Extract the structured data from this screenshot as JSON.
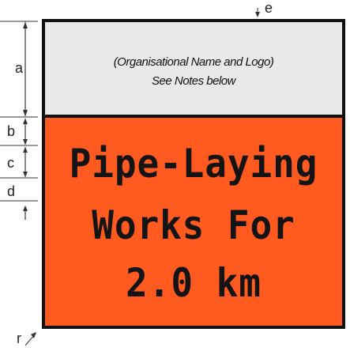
{
  "logo_panel": {
    "line1": "(Organisational Name and Logo)",
    "line2": "See Notes below"
  },
  "sign_lines": [
    "Pipe-Laying",
    "Works For",
    "2.0 km"
  ],
  "dimension_labels": {
    "a": "a",
    "b": "b",
    "c": "c",
    "d": "d",
    "e": "e",
    "r": "r"
  },
  "colors": {
    "sign_orange": "#ff5a1f",
    "logo_panel_grey": "#e9e9e9",
    "border_black": "#111111"
  }
}
